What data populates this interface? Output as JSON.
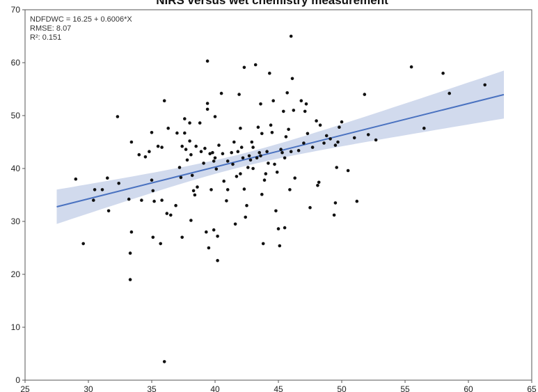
{
  "chart_data": {
    "type": "scatter",
    "title": "NIRS versus wet chemistry measurement",
    "xlim": [
      25,
      65
    ],
    "ylim": [
      0,
      70
    ],
    "x_ticks": [
      "25",
      "30",
      "35",
      "40",
      "45",
      "50",
      "55",
      "60",
      "65"
    ],
    "y_ticks": [
      "0",
      "10",
      "20",
      "30",
      "40",
      "50",
      "60",
      "70"
    ],
    "annotations": [
      "NDFDWC = 16.25 + 0.6006*X",
      "RMSE: 8.07",
      "R²: 0.151"
    ],
    "grid": false,
    "fit": {
      "intercept": 16.25,
      "slope": 0.6006,
      "x_range": [
        27.5,
        62.8
      ]
    },
    "colors": {
      "points": "#111111",
      "fit_line": "#4a72c0",
      "band": "#c9d4ea"
    },
    "points": [
      [
        29.0,
        38.0
      ],
      [
        29.6,
        25.8
      ],
      [
        30.4,
        34.0
      ],
      [
        30.5,
        36.0
      ],
      [
        31.1,
        36.0
      ],
      [
        31.5,
        38.2
      ],
      [
        31.6,
        32.0
      ],
      [
        32.3,
        49.8
      ],
      [
        32.4,
        37.2
      ],
      [
        33.2,
        34.2
      ],
      [
        33.3,
        24.0
      ],
      [
        33.3,
        19.0
      ],
      [
        33.4,
        28.0
      ],
      [
        33.4,
        45.0
      ],
      [
        34.0,
        42.6
      ],
      [
        34.2,
        34.0
      ],
      [
        34.5,
        42.2
      ],
      [
        34.8,
        43.2
      ],
      [
        35.0,
        46.8
      ],
      [
        35.0,
        37.8
      ],
      [
        35.1,
        35.8
      ],
      [
        35.1,
        27.0
      ],
      [
        35.2,
        33.8
      ],
      [
        35.5,
        44.2
      ],
      [
        35.7,
        25.8
      ],
      [
        35.8,
        44.0
      ],
      [
        35.8,
        34.0
      ],
      [
        36.0,
        52.8
      ],
      [
        36.0,
        3.5
      ],
      [
        36.2,
        31.5
      ],
      [
        36.3,
        47.6
      ],
      [
        36.5,
        31.2
      ],
      [
        36.9,
        33.0
      ],
      [
        37.0,
        46.7
      ],
      [
        37.2,
        40.2
      ],
      [
        37.3,
        38.3
      ],
      [
        37.4,
        44.2
      ],
      [
        37.4,
        27.0
      ],
      [
        37.6,
        49.4
      ],
      [
        37.6,
        46.7
      ],
      [
        37.7,
        43.6
      ],
      [
        37.8,
        41.6
      ],
      [
        38.0,
        45.2
      ],
      [
        38.0,
        48.6
      ],
      [
        38.1,
        30.2
      ],
      [
        38.1,
        42.6
      ],
      [
        38.2,
        38.7
      ],
      [
        38.3,
        35.8
      ],
      [
        38.4,
        35.0
      ],
      [
        38.5,
        44.2
      ],
      [
        38.6,
        36.5
      ],
      [
        38.8,
        48.6
      ],
      [
        38.9,
        43.2
      ],
      [
        39.1,
        41.0
      ],
      [
        39.2,
        43.8
      ],
      [
        39.3,
        28.0
      ],
      [
        39.4,
        60.3
      ],
      [
        39.4,
        52.3
      ],
      [
        39.4,
        51.2
      ],
      [
        39.5,
        25.0
      ],
      [
        39.6,
        42.8
      ],
      [
        39.7,
        36.0
      ],
      [
        39.8,
        43.0
      ],
      [
        39.9,
        41.4
      ],
      [
        39.9,
        28.4
      ],
      [
        40.0,
        42.0
      ],
      [
        40.0,
        49.8
      ],
      [
        40.1,
        39.9
      ],
      [
        40.2,
        22.6
      ],
      [
        40.2,
        27.2
      ],
      [
        40.3,
        44.4
      ],
      [
        40.5,
        54.2
      ],
      [
        40.6,
        42.8
      ],
      [
        40.7,
        37.6
      ],
      [
        40.9,
        33.9
      ],
      [
        41.0,
        36.0
      ],
      [
        41.0,
        41.4
      ],
      [
        41.3,
        43.0
      ],
      [
        41.4,
        40.8
      ],
      [
        41.5,
        45.0
      ],
      [
        41.6,
        29.5
      ],
      [
        41.7,
        38.5
      ],
      [
        41.8,
        43.2
      ],
      [
        41.9,
        54.0
      ],
      [
        42.0,
        39.0
      ],
      [
        42.0,
        47.6
      ],
      [
        42.1,
        44.0
      ],
      [
        42.2,
        42.0
      ],
      [
        42.3,
        59.1
      ],
      [
        42.3,
        36.1
      ],
      [
        42.4,
        30.8
      ],
      [
        42.5,
        33.0
      ],
      [
        42.6,
        40.2
      ],
      [
        42.7,
        42.4
      ],
      [
        42.8,
        41.6
      ],
      [
        42.9,
        45.0
      ],
      [
        43.0,
        44.0
      ],
      [
        43.0,
        40.0
      ],
      [
        43.2,
        59.6
      ],
      [
        43.3,
        42.0
      ],
      [
        43.4,
        47.8
      ],
      [
        43.5,
        43.0
      ],
      [
        43.6,
        42.4
      ],
      [
        43.6,
        52.2
      ],
      [
        43.7,
        46.6
      ],
      [
        43.7,
        35.1
      ],
      [
        43.8,
        25.8
      ],
      [
        43.9,
        37.8
      ],
      [
        44.0,
        39.0
      ],
      [
        44.1,
        43.2
      ],
      [
        44.2,
        41.0
      ],
      [
        44.3,
        58.0
      ],
      [
        44.4,
        48.2
      ],
      [
        44.5,
        46.8
      ],
      [
        44.6,
        52.8
      ],
      [
        44.7,
        40.8
      ],
      [
        44.8,
        32.0
      ],
      [
        44.9,
        39.3
      ],
      [
        45.0,
        28.6
      ],
      [
        45.1,
        25.4
      ],
      [
        45.2,
        43.6
      ],
      [
        45.3,
        43.0
      ],
      [
        45.4,
        50.8
      ],
      [
        45.5,
        42.0
      ],
      [
        45.5,
        28.8
      ],
      [
        45.6,
        46.0
      ],
      [
        45.7,
        54.3
      ],
      [
        45.8,
        47.4
      ],
      [
        45.9,
        36.0
      ],
      [
        46.0,
        65.0
      ],
      [
        46.0,
        43.2
      ],
      [
        46.1,
        57.0
      ],
      [
        46.2,
        51.0
      ],
      [
        46.3,
        38.2
      ],
      [
        46.6,
        43.4
      ],
      [
        46.8,
        52.8
      ],
      [
        47.0,
        44.8
      ],
      [
        47.1,
        50.8
      ],
      [
        47.2,
        52.2
      ],
      [
        47.3,
        46.6
      ],
      [
        47.5,
        32.6
      ],
      [
        47.7,
        44.0
      ],
      [
        48.0,
        49.0
      ],
      [
        48.1,
        36.8
      ],
      [
        48.2,
        37.4
      ],
      [
        48.3,
        48.2
      ],
      [
        48.6,
        44.8
      ],
      [
        48.8,
        46.2
      ],
      [
        49.1,
        45.6
      ],
      [
        49.4,
        31.2
      ],
      [
        49.5,
        44.4
      ],
      [
        49.5,
        33.5
      ],
      [
        49.6,
        40.2
      ],
      [
        49.7,
        45.0
      ],
      [
        49.8,
        47.8
      ],
      [
        50.0,
        48.8
      ],
      [
        50.5,
        39.6
      ],
      [
        51.0,
        45.8
      ],
      [
        51.2,
        33.8
      ],
      [
        51.8,
        54.0
      ],
      [
        52.1,
        46.4
      ],
      [
        52.7,
        45.4
      ],
      [
        55.5,
        59.2
      ],
      [
        56.5,
        47.6
      ],
      [
        58.0,
        58.0
      ],
      [
        58.5,
        54.2
      ],
      [
        61.3,
        55.8
      ]
    ]
  }
}
